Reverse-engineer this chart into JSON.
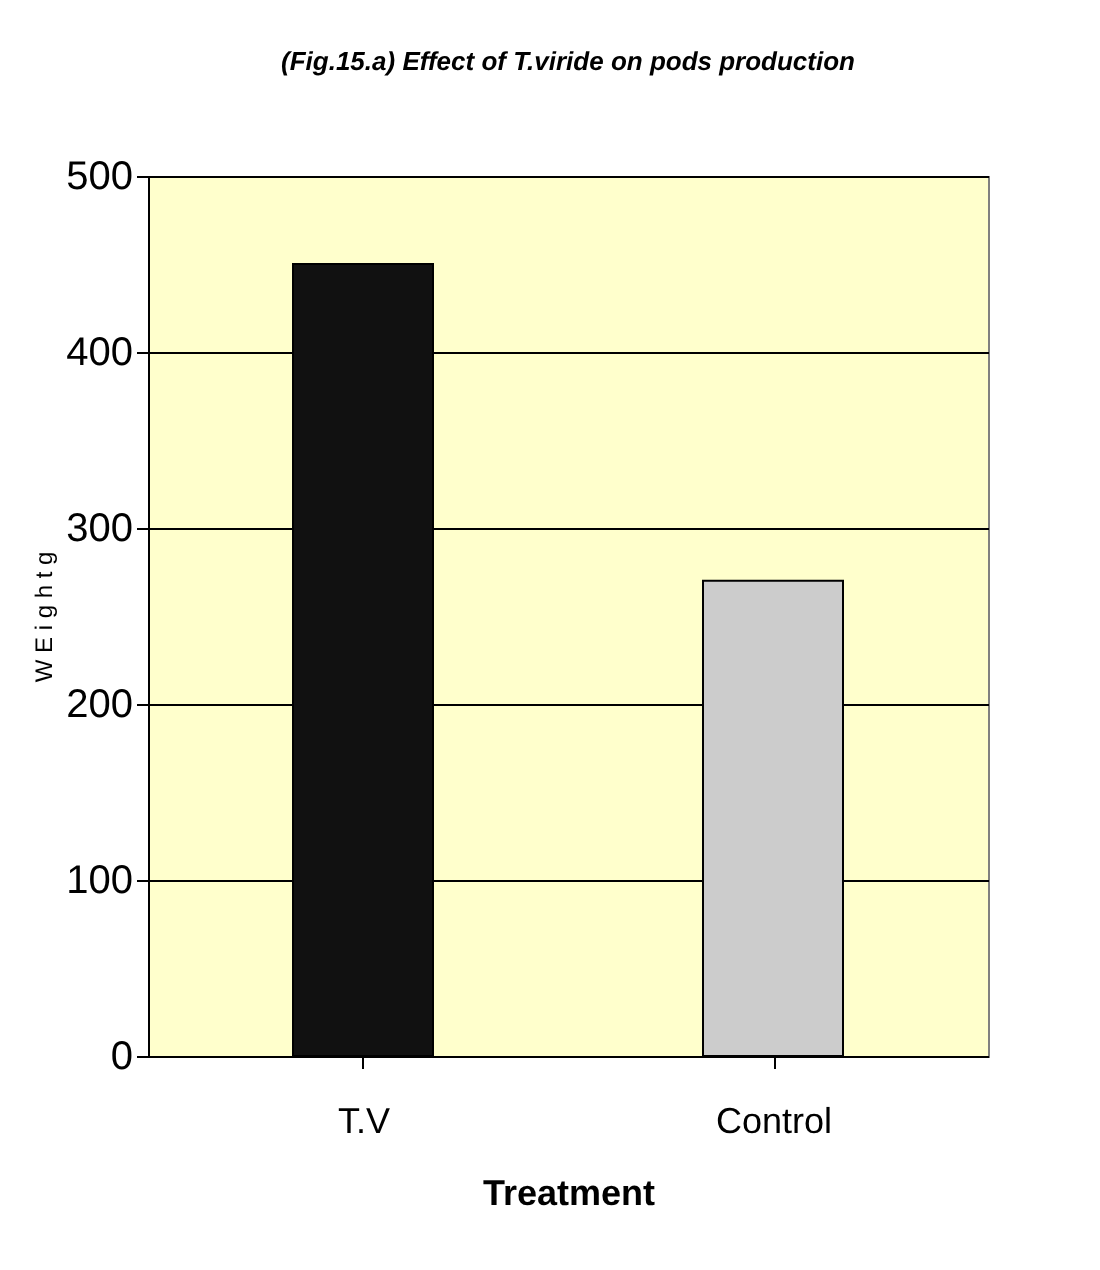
{
  "chart_data": {
    "type": "bar",
    "title": "(Fig.15.a) Effect of T.viride on pods production",
    "xlabel": "Treatment",
    "ylabel": "W E i g h t  g",
    "categories": [
      "T.V",
      "Control"
    ],
    "values": [
      450,
      270
    ],
    "colors": [
      "#111111",
      "#cccccc"
    ],
    "ylim": [
      0,
      500
    ],
    "yticks": [
      0,
      100,
      200,
      300,
      400,
      500
    ],
    "grid": "y"
  }
}
